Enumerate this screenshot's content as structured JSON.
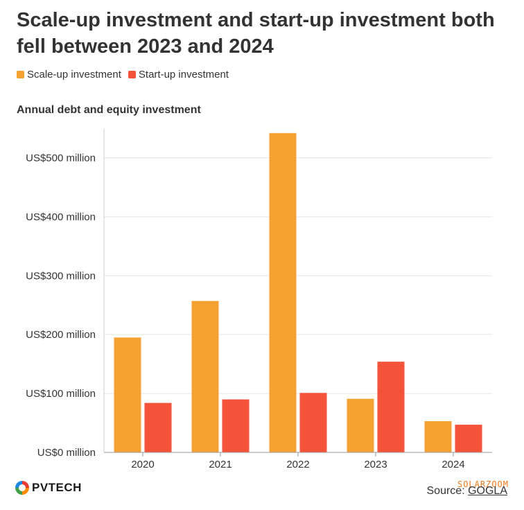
{
  "title": "Scale-up investment and start-up investment both fell between 2023 and 2024",
  "subtitle": "Annual debt and equity investment",
  "legend": [
    {
      "label": "Scale-up investment",
      "color": "#F4A130"
    },
    {
      "label": "Start-up investment",
      "color": "#F4533A"
    }
  ],
  "footer": {
    "logo_text": "PVTECH",
    "source_prefix": "Source: ",
    "source_link": "GOGLA",
    "watermark": "SOLARZOOM"
  },
  "chart_data": {
    "type": "bar",
    "categories": [
      "2020",
      "2021",
      "2022",
      "2023",
      "2024"
    ],
    "series": [
      {
        "name": "Scale-up investment",
        "color": "#F4A130",
        "values": [
          195,
          257,
          542,
          91,
          53
        ]
      },
      {
        "name": "Start-up investment",
        "color": "#F4533A",
        "values": [
          84,
          90,
          101,
          154,
          47
        ]
      }
    ],
    "y_ticks": [
      {
        "value": 0,
        "label": "US$0 million"
      },
      {
        "value": 100,
        "label": "US$100 million"
      },
      {
        "value": 200,
        "label": "US$200 million"
      },
      {
        "value": 300,
        "label": "US$300 million"
      },
      {
        "value": 400,
        "label": "US$400 million"
      },
      {
        "value": 500,
        "label": "US$500 million"
      }
    ],
    "ylim": [
      0,
      550
    ],
    "grid": true,
    "legend_position": "top-left"
  }
}
